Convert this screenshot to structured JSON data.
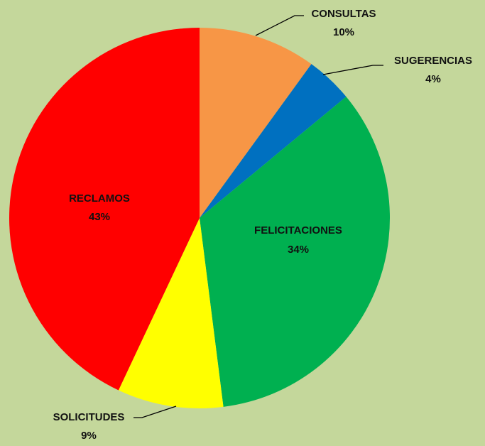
{
  "chart_data": {
    "type": "pie",
    "categories": [
      "CONSULTAS",
      "SUGERENCIAS",
      "FELICITACIONES",
      "SOLICITUDES",
      "RECLAMOS"
    ],
    "values": [
      10,
      4,
      34,
      9,
      43
    ],
    "value_labels": [
      "10%",
      "4%",
      "34%",
      "9%",
      "43%"
    ],
    "colors": [
      "#f79646",
      "#0070c0",
      "#00b050",
      "#ffff00",
      "#ff0000"
    ]
  }
}
